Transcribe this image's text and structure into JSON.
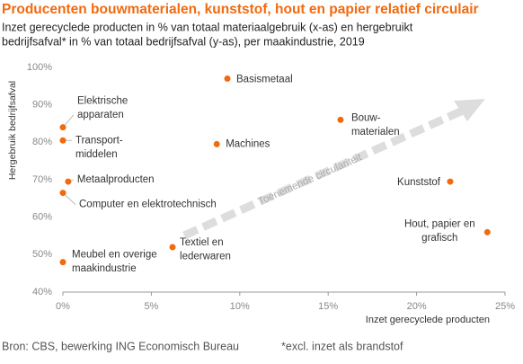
{
  "chart_data": {
    "type": "scatter",
    "title": "Producenten bouwmaterialen, kunststof, hout en papier relatief circulair",
    "subtitle": [
      "Inzet gerecyclede producten in % van totaal materiaalgebruik (x-as) en hergebruikt",
      "bedrijfsafval* in % van totaal bedrijfsafval (y-as), per maakindustrie, 2019"
    ],
    "x_label": "Inzet gerecyclede producten",
    "y_label": "Hergebruik bedrijfsafval",
    "annotation": "Toenemende circulariteit",
    "source": "Bron: CBS, bewerking ING Economisch Bureau",
    "footnote": "*excl. inzet als brandstof",
    "color": "#f26a0f",
    "labels": [
      [
        "Elektrische",
        "apparaten"
      ],
      [
        "Transport-",
        "middelen"
      ],
      [
        "Metaalproducten"
      ],
      [
        "Computer en elektrotechnisch"
      ],
      [
        "Meubel en overige",
        "maakindustrie"
      ],
      [
        "Textiel en",
        "lederwaren"
      ],
      [
        "Machines"
      ],
      [
        "Basismetaal"
      ],
      [
        "Bouw-",
        "materialen"
      ],
      [
        "Kunststof"
      ],
      [
        "Hout, papier en",
        "grafisch"
      ]
    ],
    "x": [
      0.0,
      0.0,
      0.3,
      0.0,
      0.0,
      6.2,
      8.7,
      9.3,
      15.7,
      21.9,
      24.0
    ],
    "y": [
      84,
      80.5,
      69.5,
      66.5,
      48,
      52,
      79.5,
      97,
      86,
      69.5,
      56
    ],
    "xlim": [
      0,
      25
    ],
    "ylim": [
      40,
      100
    ],
    "xticks": [
      {
        "value": 0,
        "label": "0%"
      },
      {
        "value": 5,
        "label": "5%"
      },
      {
        "value": 10,
        "label": "10%"
      },
      {
        "value": 15,
        "label": "15%"
      },
      {
        "value": 20,
        "label": "20%"
      },
      {
        "value": 25,
        "label": "25%"
      }
    ],
    "yticks": [
      {
        "value": 40,
        "label": "40%"
      },
      {
        "value": 50,
        "label": "50%"
      },
      {
        "value": 60,
        "label": "60%"
      },
      {
        "value": 70,
        "label": "70%"
      },
      {
        "value": 80,
        "label": "80%"
      },
      {
        "value": 90,
        "label": "90%"
      },
      {
        "value": 100,
        "label": "100%"
      }
    ]
  }
}
